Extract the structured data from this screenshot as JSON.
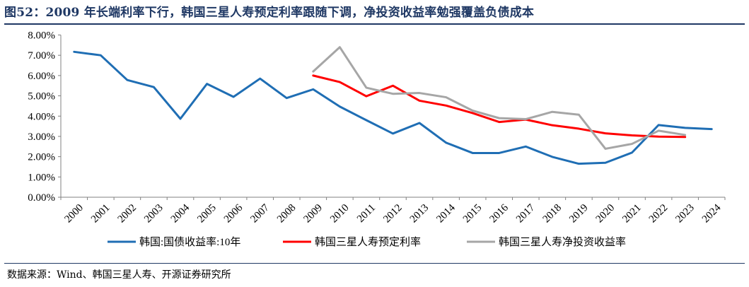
{
  "title": "图52：2009 年长端利率下行，韩国三星人寿预定利率跟随下调，净投资收益率勉强覆盖负债成本",
  "source": "数据来源：Wind、韩国三星人寿、开源证券研究所",
  "colors": {
    "title": "#1f3864",
    "series": [
      "#1f6eb4",
      "#ff0000",
      "#a6a6a6"
    ],
    "axis": "#808080"
  },
  "chart_data": {
    "type": "line",
    "x": [
      "2000",
      "2001",
      "2002",
      "2003",
      "2004",
      "2005",
      "2006",
      "2007",
      "2008",
      "2009",
      "2010",
      "2011",
      "2012",
      "2013",
      "2014",
      "2015",
      "2016",
      "2017",
      "2018",
      "2019",
      "2020",
      "2021",
      "2022",
      "2023",
      "2024"
    ],
    "y_ticks": [
      "0.00%",
      "1.00%",
      "2.00%",
      "3.00%",
      "4.00%",
      "5.00%",
      "6.00%",
      "7.00%",
      "8.00%"
    ],
    "ylim": [
      0,
      8
    ],
    "grid": false,
    "legend_position": "bottom",
    "series": [
      {
        "name": "韩国:国债收益率:10年",
        "values": [
          7.17,
          7.0,
          5.78,
          5.43,
          3.87,
          5.59,
          4.95,
          5.85,
          4.89,
          5.32,
          4.47,
          3.8,
          3.14,
          3.66,
          2.69,
          2.18,
          2.18,
          2.5,
          1.99,
          1.65,
          1.7,
          2.2,
          3.56,
          3.42,
          3.36
        ]
      },
      {
        "name": "韩国三星人寿预定利率",
        "values": [
          null,
          null,
          null,
          null,
          null,
          null,
          null,
          null,
          null,
          6.0,
          5.68,
          4.98,
          5.5,
          4.76,
          4.52,
          4.15,
          3.71,
          3.83,
          3.55,
          3.38,
          3.15,
          3.05,
          2.99,
          2.97,
          null
        ]
      },
      {
        "name": "韩国三星人寿净投资收益率",
        "values": [
          null,
          null,
          null,
          null,
          null,
          null,
          null,
          null,
          null,
          6.2,
          7.4,
          5.4,
          5.1,
          5.14,
          4.93,
          4.27,
          3.9,
          3.85,
          4.21,
          4.07,
          2.39,
          2.63,
          3.28,
          3.07,
          null
        ]
      }
    ]
  }
}
